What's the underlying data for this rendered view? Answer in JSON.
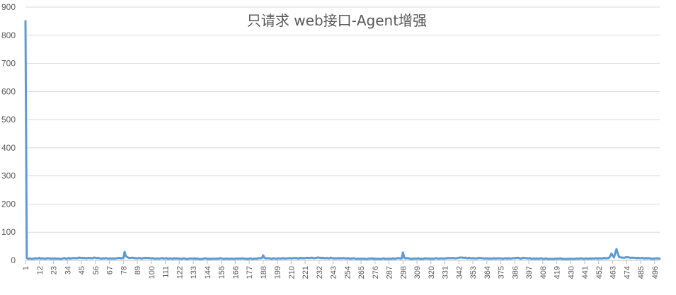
{
  "chart_data": {
    "type": "line",
    "title": "只请求 web接口-Agent增强",
    "xlabel": "",
    "ylabel": "",
    "x_range": [
      1,
      500
    ],
    "x_tick_labels": [
      1,
      12,
      23,
      34,
      45,
      56,
      67,
      78,
      89,
      100,
      111,
      122,
      133,
      144,
      155,
      166,
      177,
      188,
      199,
      210,
      221,
      232,
      243,
      254,
      265,
      276,
      287,
      298,
      309,
      320,
      331,
      342,
      353,
      364,
      375,
      386,
      397,
      408,
      419,
      430,
      441,
      452,
      463,
      474,
      485,
      496
    ],
    "ylim": [
      0,
      900
    ],
    "y_ticks": [
      0,
      100,
      200,
      300,
      400,
      500,
      600,
      700,
      800,
      900
    ],
    "grid": true,
    "legend": "none",
    "series": [
      {
        "color": "#5b9bd5",
        "baseline": 6,
        "points": [
          [
            1,
            850
          ],
          [
            2,
            8
          ],
          [
            3,
            6
          ],
          [
            10,
            7
          ],
          [
            12,
            9
          ],
          [
            13,
            6
          ],
          [
            20,
            7
          ],
          [
            30,
            6
          ],
          [
            40,
            8
          ],
          [
            45,
            9
          ],
          [
            50,
            8
          ],
          [
            56,
            9
          ],
          [
            60,
            7
          ],
          [
            70,
            7
          ],
          [
            78,
            8
          ],
          [
            79,
            30
          ],
          [
            80,
            15
          ],
          [
            81,
            12
          ],
          [
            82,
            9
          ],
          [
            90,
            8
          ],
          [
            100,
            7
          ],
          [
            111,
            7
          ],
          [
            122,
            6
          ],
          [
            133,
            6
          ],
          [
            144,
            6
          ],
          [
            155,
            7
          ],
          [
            166,
            6
          ],
          [
            177,
            6
          ],
          [
            187,
            8
          ],
          [
            188,
            18
          ],
          [
            189,
            9
          ],
          [
            190,
            7
          ],
          [
            199,
            6
          ],
          [
            210,
            7
          ],
          [
            221,
            8
          ],
          [
            232,
            9
          ],
          [
            243,
            8
          ],
          [
            254,
            7
          ],
          [
            265,
            6
          ],
          [
            276,
            6
          ],
          [
            287,
            6
          ],
          [
            297,
            7
          ],
          [
            298,
            28
          ],
          [
            299,
            9
          ],
          [
            300,
            7
          ],
          [
            309,
            6
          ],
          [
            320,
            6
          ],
          [
            331,
            7
          ],
          [
            342,
            9
          ],
          [
            353,
            8
          ],
          [
            364,
            7
          ],
          [
            375,
            7
          ],
          [
            386,
            8
          ],
          [
            397,
            7
          ],
          [
            408,
            6
          ],
          [
            419,
            6
          ],
          [
            430,
            6
          ],
          [
            441,
            6
          ],
          [
            452,
            7
          ],
          [
            460,
            8
          ],
          [
            462,
            24
          ],
          [
            464,
            10
          ],
          [
            466,
            40
          ],
          [
            468,
            12
          ],
          [
            470,
            10
          ],
          [
            474,
            11
          ],
          [
            480,
            9
          ],
          [
            485,
            8
          ],
          [
            490,
            7
          ],
          [
            496,
            6
          ],
          [
            500,
            6
          ]
        ]
      }
    ]
  }
}
